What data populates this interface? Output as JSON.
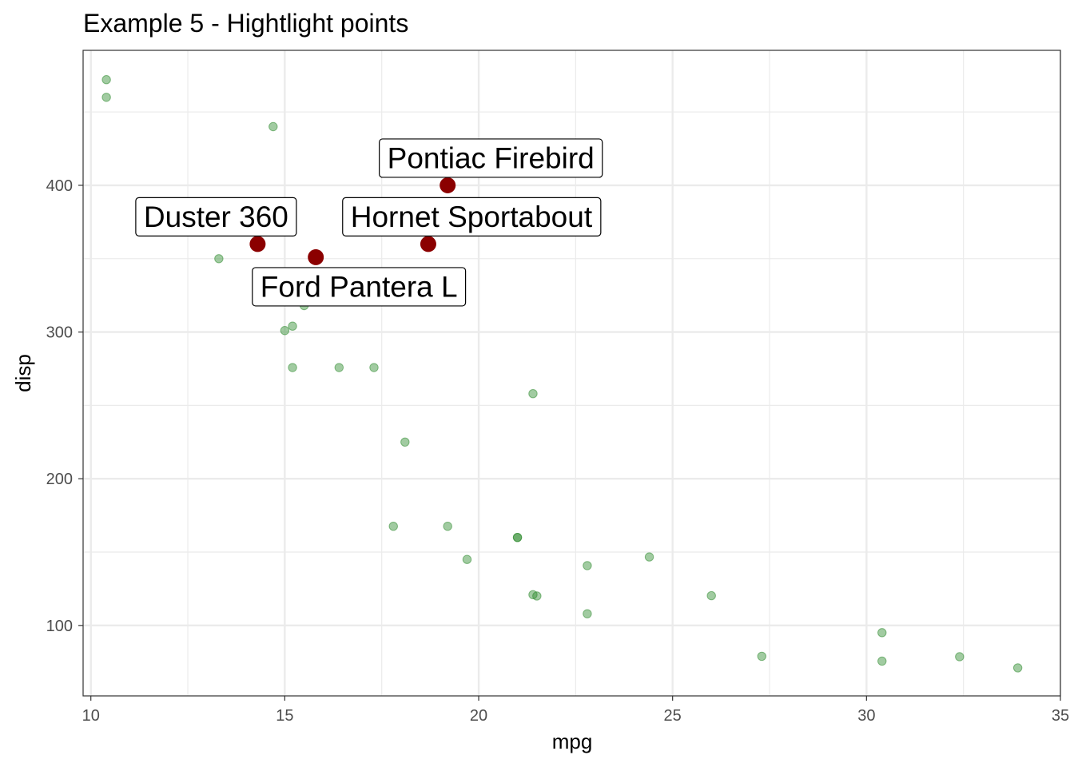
{
  "chart_data": {
    "type": "scatter",
    "title": "Example 5 - Hightlight points",
    "xlabel": "mpg",
    "ylabel": "disp",
    "xlim": [
      9.8,
      35.0
    ],
    "ylim": [
      52,
      492
    ],
    "x_ticks": [
      10,
      15,
      20,
      25,
      30,
      35
    ],
    "y_ticks": [
      100,
      200,
      300,
      400
    ],
    "grid": true,
    "colors": {
      "background_points": "#2e8b2e",
      "highlight_points": "#8b0000",
      "grid": "#ebebeb",
      "panel_border": "#333333"
    },
    "series": [
      {
        "points": [
          {
            "x": 21.0,
            "y": 160
          },
          {
            "x": 21.0,
            "y": 160
          },
          {
            "x": 22.8,
            "y": 108
          },
          {
            "x": 21.4,
            "y": 258
          },
          {
            "x": 18.1,
            "y": 225
          },
          {
            "x": 14.3,
            "y": 360
          },
          {
            "x": 24.4,
            "y": 146.7
          },
          {
            "x": 22.8,
            "y": 140.8
          },
          {
            "x": 19.2,
            "y": 167.6
          },
          {
            "x": 17.8,
            "y": 167.6
          },
          {
            "x": 16.4,
            "y": 275.8
          },
          {
            "x": 17.3,
            "y": 275.8
          },
          {
            "x": 15.2,
            "y": 275.8
          },
          {
            "x": 10.4,
            "y": 472
          },
          {
            "x": 10.4,
            "y": 460
          },
          {
            "x": 14.7,
            "y": 440
          },
          {
            "x": 32.4,
            "y": 78.7
          },
          {
            "x": 30.4,
            "y": 75.7
          },
          {
            "x": 33.9,
            "y": 71.1
          },
          {
            "x": 21.5,
            "y": 120.1
          },
          {
            "x": 15.5,
            "y": 318
          },
          {
            "x": 15.2,
            "y": 304
          },
          {
            "x": 13.3,
            "y": 350
          },
          {
            "x": 19.2,
            "y": 400
          },
          {
            "x": 27.3,
            "y": 79
          },
          {
            "x": 26.0,
            "y": 120.3
          },
          {
            "x": 30.4,
            "y": 95.1
          },
          {
            "x": 15.8,
            "y": 351
          },
          {
            "x": 19.7,
            "y": 145
          },
          {
            "x": 15.0,
            "y": 301
          },
          {
            "x": 21.4,
            "y": 121
          },
          {
            "x": 18.7,
            "y": 360
          }
        ]
      },
      {
        "points": [
          {
            "x": 14.3,
            "y": 360,
            "label": "Duster 360"
          },
          {
            "x": 18.7,
            "y": 360,
            "label": "Hornet Sportabout"
          },
          {
            "x": 19.2,
            "y": 400,
            "label": "Pontiac Firebird"
          },
          {
            "x": 15.8,
            "y": 351,
            "label": "Ford Pantera L"
          }
        ]
      }
    ]
  }
}
